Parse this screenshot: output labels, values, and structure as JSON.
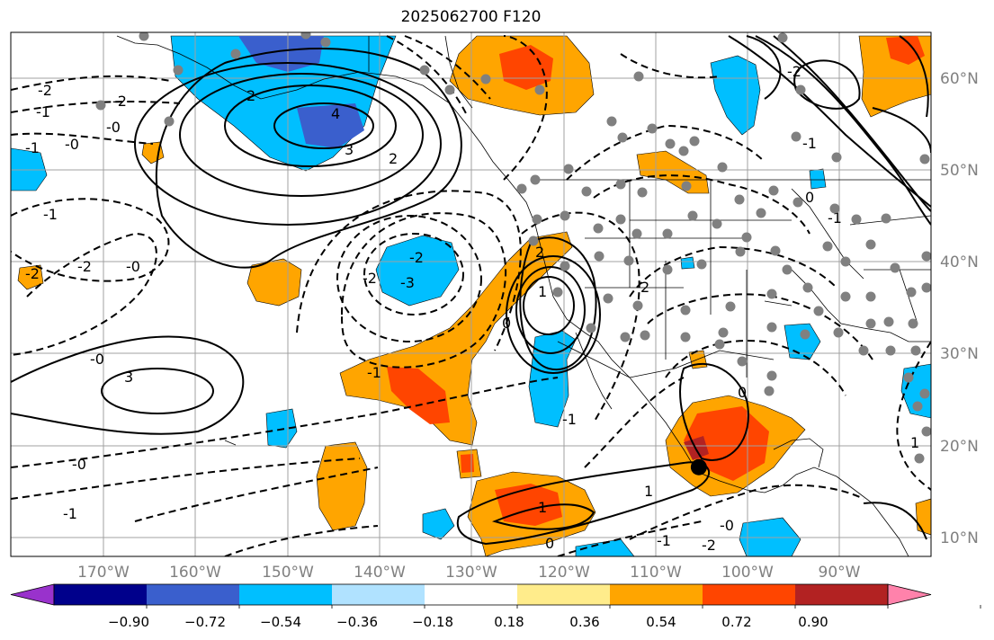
{
  "title": "2025062700 F120",
  "map": {
    "lat_labels": [
      "60°N",
      "50°N",
      "40°N",
      "30°N",
      "20°N",
      "10°N"
    ],
    "lon_labels": [
      "170°W",
      "160°W",
      "150°W",
      "140°W",
      "130°W",
      "120°W",
      "110°W",
      "100°W",
      "90°W"
    ],
    "contour_labels": [
      "-2",
      "-1",
      "-0",
      "-2",
      "2",
      "4",
      "3",
      "2",
      "-1",
      "-0",
      "-1",
      "-2",
      "-2",
      "-0",
      "-2",
      "-3",
      "-2",
      "0",
      "1",
      "-0",
      "2",
      "3",
      "-1",
      "-1",
      "0",
      "-1",
      "1",
      "1",
      "1",
      "0",
      "-0",
      "-2",
      "-1",
      "-2",
      "0",
      "-1",
      "2",
      "-0",
      "-1"
    ],
    "marker": {
      "lon_w": 105.3,
      "lat_n": 17.7
    }
  },
  "colorbar": {
    "ticks": [
      "−0.90",
      "−0.72",
      "−0.54",
      "−0.36",
      "−0.18",
      "0.18",
      "0.36",
      "0.54",
      "0.72",
      "0.90"
    ],
    "colors": [
      "#9932cc",
      "#00008b",
      "#3a5fcd",
      "#00bfff",
      "#b0e2ff",
      "#ffffff",
      "#ffec8b",
      "#ffa500",
      "#ff4500",
      "#b22222",
      "#ff82ab"
    ]
  }
}
